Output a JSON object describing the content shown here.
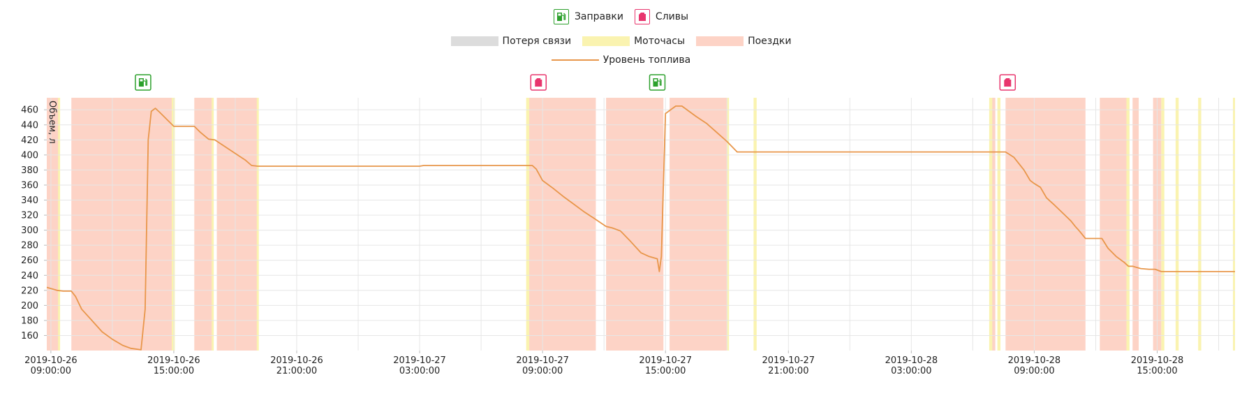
{
  "legend": {
    "markers": [
      {
        "label": "Заправки",
        "icon": "fuel-pump-icon",
        "color": "#2ca02c"
      },
      {
        "label": "Сливы",
        "icon": "fuel-canister-icon",
        "color": "#e8356d"
      }
    ],
    "zones": [
      {
        "label": "Потеря связи",
        "color": "#dcdcdc"
      },
      {
        "label": "Моточасы",
        "color": "#faf3b0"
      },
      {
        "label": "Поездки",
        "color": "#fdd3c6"
      }
    ],
    "series_label": "Уровень топлива",
    "series_color": "#e8964a"
  },
  "chart_data": {
    "type": "line",
    "ylabel": "Объем, л",
    "ylim": [
      140,
      476
    ],
    "yticks": [
      160,
      180,
      200,
      220,
      240,
      260,
      280,
      300,
      320,
      340,
      360,
      380,
      400,
      420,
      440,
      460
    ],
    "xlim_hours": [
      -0.2,
      57.8
    ],
    "xtick_hours": [
      0,
      6,
      12,
      18,
      24,
      30,
      36,
      42,
      48,
      54
    ],
    "xtick_labels": [
      [
        "2019-10-26",
        "09:00:00"
      ],
      [
        "2019-10-26",
        "15:00:00"
      ],
      [
        "2019-10-26",
        "21:00:00"
      ],
      [
        "2019-10-27",
        "03:00:00"
      ],
      [
        "2019-10-27",
        "09:00:00"
      ],
      [
        "2019-10-27",
        "15:00:00"
      ],
      [
        "2019-10-27",
        "21:00:00"
      ],
      [
        "2019-10-28",
        "03:00:00"
      ],
      [
        "2019-10-28",
        "09:00:00"
      ],
      [
        "2019-10-28",
        "15:00:00"
      ]
    ],
    "trips": [
      [
        -0.2,
        0.4
      ],
      [
        1.0,
        6.0
      ],
      [
        7.0,
        7.9
      ],
      [
        8.1,
        10.1
      ],
      [
        23.3,
        26.6
      ],
      [
        27.1,
        29.9
      ],
      [
        30.2,
        33.0
      ],
      [
        45.9,
        46.1
      ],
      [
        46.6,
        50.5
      ],
      [
        51.2,
        52.6
      ],
      [
        52.8,
        53.1
      ],
      [
        53.8,
        54.2
      ]
    ],
    "engine_hours": [
      [
        0.35,
        0.45
      ],
      [
        5.9,
        6.05
      ],
      [
        7.85,
        7.95
      ],
      [
        10.05,
        10.15
      ],
      [
        23.2,
        23.35
      ],
      [
        33.0,
        33.1
      ],
      [
        34.3,
        34.45
      ],
      [
        45.8,
        45.95
      ],
      [
        46.2,
        46.35
      ],
      [
        52.5,
        52.65
      ],
      [
        54.2,
        54.35
      ],
      [
        54.9,
        55.05
      ],
      [
        56.0,
        56.15
      ],
      [
        57.7,
        57.8
      ]
    ],
    "refuels_hours": [
      4.5,
      29.6
    ],
    "drains_hours": [
      23.8,
      46.7
    ],
    "series": [
      {
        "name": "Уровень топлива",
        "x": [
          -0.2,
          0.3,
          0.6,
          1.0,
          1.2,
          1.5,
          2.0,
          2.5,
          3.0,
          3.5,
          3.9,
          4.4,
          4.6,
          4.75,
          4.9,
          5.1,
          5.3,
          6.0,
          7.0,
          7.3,
          7.7,
          8.0,
          8.5,
          9.0,
          9.5,
          9.8,
          10.1,
          12.0,
          18.0,
          18.2,
          23.5,
          23.7,
          24.0,
          24.5,
          25.0,
          25.5,
          26.0,
          26.5,
          27.1,
          27.4,
          27.8,
          28.3,
          28.8,
          29.2,
          29.6,
          29.7,
          29.8,
          30.0,
          30.5,
          30.8,
          31.5,
          32.0,
          32.5,
          33.0,
          33.5,
          45.0,
          46.6,
          47.0,
          47.5,
          47.8,
          48.0,
          48.3,
          48.6,
          49.0,
          49.5,
          49.8,
          50.0,
          50.2,
          50.5,
          51.0,
          51.3,
          51.6,
          52.0,
          52.4,
          52.6,
          52.8,
          53.2,
          53.6,
          53.9,
          54.2,
          54.5,
          57.8
        ],
        "y": [
          224,
          220,
          219,
          219,
          212,
          195,
          180,
          165,
          155,
          147,
          143,
          141,
          195,
          420,
          458,
          462,
          457,
          438,
          438,
          430,
          421,
          420,
          411,
          402,
          393,
          386,
          385,
          385,
          385,
          386,
          386,
          381,
          366,
          356,
          345,
          335,
          325,
          316,
          305,
          303,
          299,
          285,
          270,
          265,
          262,
          245,
          265,
          455,
          465,
          465,
          451,
          442,
          430,
          418,
          404,
          404,
          404,
          397,
          380,
          366,
          362,
          357,
          343,
          333,
          320,
          312,
          305,
          299,
          289,
          289,
          289,
          276,
          265,
          257,
          252,
          252,
          249,
          248,
          248,
          245,
          245,
          245
        ]
      }
    ]
  }
}
